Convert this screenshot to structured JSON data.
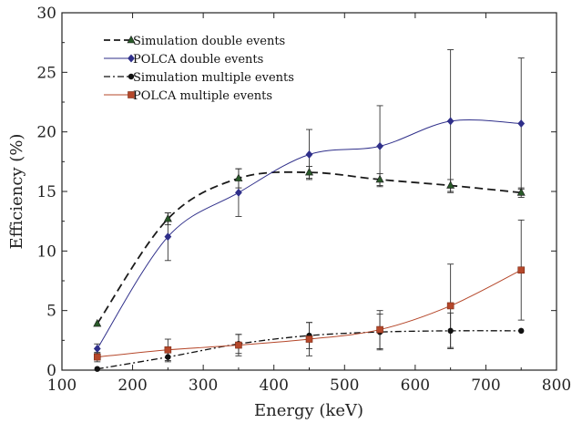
{
  "chart_data": {
    "type": "line",
    "xlabel": "Energy (keV)",
    "ylabel": "Efficiency (%)",
    "xlim": [
      100,
      800
    ],
    "ylim": [
      0,
      30
    ],
    "xticks": [
      100,
      200,
      300,
      400,
      500,
      600,
      700,
      800
    ],
    "yticks": [
      0,
      5,
      10,
      15,
      20,
      25,
      30
    ],
    "grid": false,
    "legend_position": "top-left",
    "series": [
      {
        "name": "Simulation double events",
        "style": "dashed",
        "marker": "triangle",
        "color": "#1a1a1a",
        "x": [
          150,
          250,
          350,
          450,
          550,
          650,
          750
        ],
        "values": [
          3.9,
          12.7,
          16.1,
          16.6,
          16.0,
          15.5,
          14.9
        ],
        "error": [
          0,
          0.5,
          0.8,
          0.5,
          0.5,
          0.5,
          0.4
        ]
      },
      {
        "name": "POLCA double events",
        "style": "solid",
        "marker": "diamond",
        "color": "#2f2f8a",
        "x": [
          150,
          250,
          350,
          450,
          550,
          650,
          750
        ],
        "values": [
          1.8,
          11.2,
          14.9,
          18.1,
          18.8,
          20.9,
          20.7
        ],
        "error": [
          0.4,
          2.0,
          2.0,
          2.1,
          3.4,
          6.0,
          5.5
        ]
      },
      {
        "name": "Simulation multiple events",
        "style": "dashdot",
        "marker": "circle",
        "color": "#111111",
        "x": [
          150,
          250,
          350,
          450,
          550,
          650,
          750
        ],
        "values": [
          0.1,
          1.1,
          2.2,
          2.9,
          3.2,
          3.3,
          3.3
        ],
        "error": [
          0,
          0.4,
          0.8,
          1.1,
          1.5,
          1.5,
          0
        ]
      },
      {
        "name": "POLCA multiple events",
        "style": "solid",
        "marker": "square",
        "color": "#b5472a",
        "x": [
          150,
          250,
          350,
          450,
          550,
          650,
          750
        ],
        "values": [
          1.1,
          1.7,
          2.1,
          2.6,
          3.4,
          5.4,
          8.4
        ],
        "error": [
          0.4,
          0.9,
          0.9,
          1.4,
          1.6,
          3.5,
          4.2
        ]
      }
    ]
  }
}
